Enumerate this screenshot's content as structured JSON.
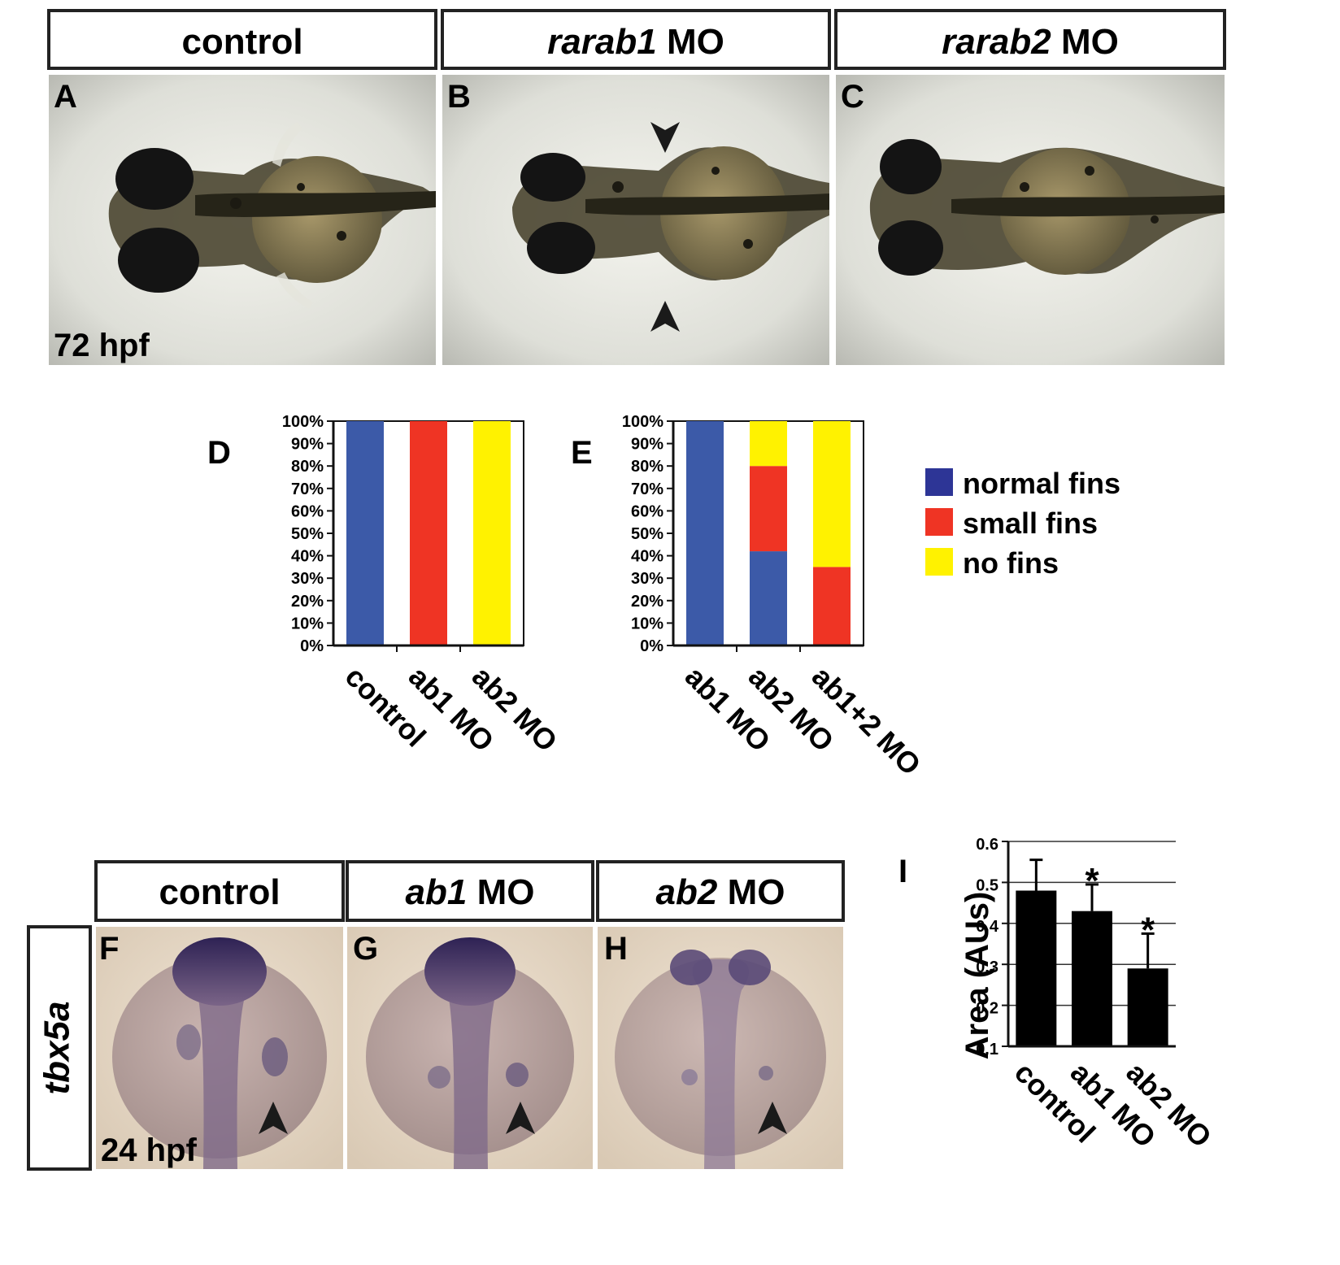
{
  "top_panels": [
    {
      "header": "control",
      "header_em": "",
      "label": "A",
      "note": "72 hpf"
    },
    {
      "header": " MO",
      "header_em": "rarab1",
      "label": "B",
      "note": ""
    },
    {
      "header": " MO",
      "header_em": "rarab2",
      "label": "C",
      "note": ""
    }
  ],
  "bottom_panels": [
    {
      "header": "control",
      "header_em": "",
      "label": "F",
      "note": "24 hpf"
    },
    {
      "header": " MO",
      "header_em": "ab1",
      "label": "G",
      "note": ""
    },
    {
      "header": " MO",
      "header_em": "ab2",
      "label": "H",
      "note": ""
    }
  ],
  "side_label": "tbx5a",
  "legend": [
    {
      "label": "normal fins",
      "color": "#2d3596"
    },
    {
      "label": "small fins",
      "color": "#ef3424"
    },
    {
      "label": "no fins",
      "color": "#fff200"
    }
  ],
  "chart_data": [
    {
      "panel": "D",
      "type": "bar",
      "stacked": true,
      "categories": [
        "control",
        "ab1 MO",
        "ab2 MO"
      ],
      "yticks": [
        "0%",
        "10%",
        "20%",
        "30%",
        "40%",
        "50%",
        "60%",
        "70%",
        "80%",
        "90%",
        "100%"
      ],
      "ylim": [
        0,
        100
      ],
      "series": [
        {
          "name": "normal fins",
          "color": "#3c5aa8",
          "values": [
            100,
            0,
            0
          ]
        },
        {
          "name": "small fins",
          "color": "#ef3424",
          "values": [
            0,
            100,
            0
          ]
        },
        {
          "name": "no fins",
          "color": "#fff200",
          "values": [
            0,
            0,
            100
          ]
        }
      ]
    },
    {
      "panel": "E",
      "type": "bar",
      "stacked": true,
      "categories": [
        "ab1 MO",
        "ab2 MO",
        "ab1+2 MO"
      ],
      "yticks": [
        "0%",
        "10%",
        "20%",
        "30%",
        "40%",
        "50%",
        "60%",
        "70%",
        "80%",
        "90%",
        "100%"
      ],
      "ylim": [
        0,
        100
      ],
      "series": [
        {
          "name": "normal fins",
          "color": "#3c5aa8",
          "values": [
            100,
            42,
            0
          ]
        },
        {
          "name": "small fins",
          "color": "#ef3424",
          "values": [
            0,
            38,
            35
          ]
        },
        {
          "name": "no fins",
          "color": "#fff200",
          "values": [
            0,
            20,
            65
          ]
        }
      ]
    },
    {
      "panel": "I",
      "type": "bar",
      "ylabel": "Area (AUs)",
      "categories": [
        "control",
        "ab1 MO",
        "ab2 MO"
      ],
      "values": [
        0.48,
        0.43,
        0.29
      ],
      "errors": [
        0.075,
        0.065,
        0.085
      ],
      "significance": [
        "",
        "*",
        "*"
      ],
      "yticks": [
        "0.1",
        "0.2",
        "0.3",
        "0.4",
        "0.5",
        "0.6"
      ],
      "ylim": [
        0.1,
        0.6
      ],
      "grid": true
    }
  ]
}
